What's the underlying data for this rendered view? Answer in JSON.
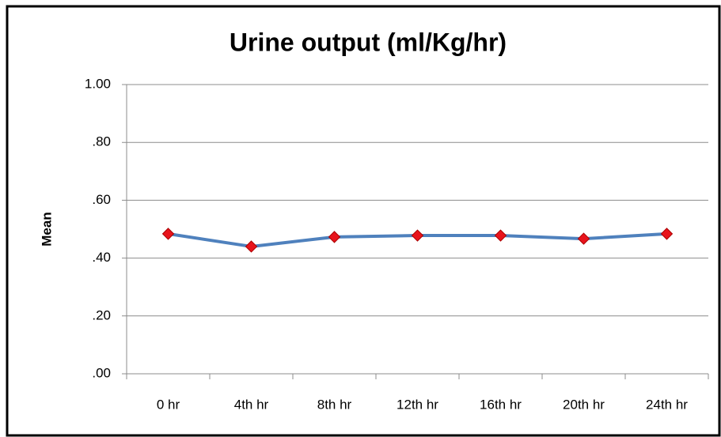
{
  "chart_data": {
    "type": "line",
    "title": "Urine output (ml/Kg/hr)",
    "y_label": "Mean",
    "categories": [
      "0 hr",
      "4th hr",
      "8th hr",
      "12th hr",
      "16th hr",
      "20th hr",
      "24th hr"
    ],
    "series": [
      {
        "color": "#4f81bd",
        "marker_color": "#e8141c",
        "values": [
          0.484,
          0.44,
          0.473,
          0.478,
          0.478,
          0.467,
          0.484
        ]
      }
    ],
    "ylim": [
      0,
      1
    ],
    "yticks": [
      {
        "value": 0,
        "label": ".00"
      },
      {
        "value": 0.2,
        "label": ".20"
      },
      {
        "value": 0.4,
        "label": ".40"
      },
      {
        "value": 0.6,
        "label": ".60"
      },
      {
        "value": 0.8,
        "label": ".80"
      },
      {
        "value": 1,
        "label": "1.00"
      }
    ],
    "grid": true
  }
}
